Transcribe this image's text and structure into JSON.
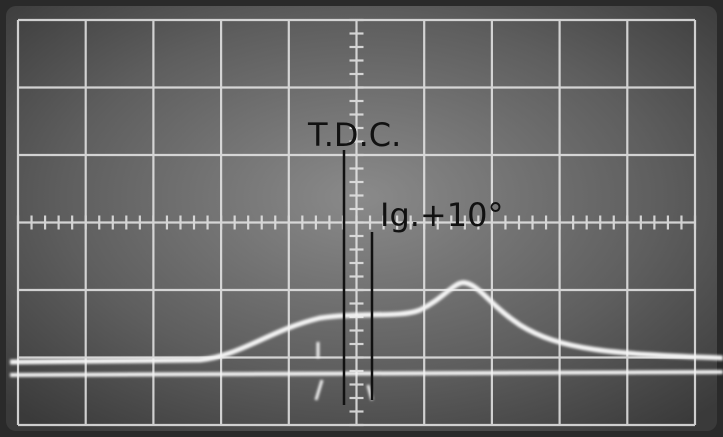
{
  "annotations": [
    {
      "text": "T.D.C."
    },
    {
      "text": "Ig.+10°"
    }
  ]
}
